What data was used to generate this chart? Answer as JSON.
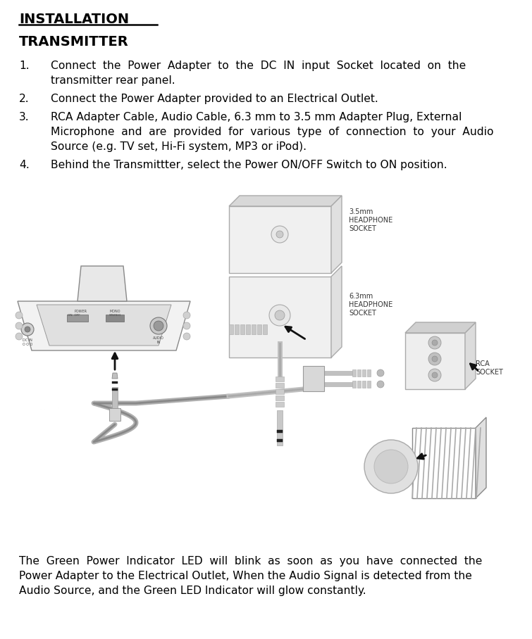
{
  "title": "INSTALLATION",
  "subtitle": "TRANSMITTER",
  "line1a": "Connect  the  Power  Adapter  to  the  DC  IN  input  Socket  located  on  the",
  "line1b": "transmitter rear panel.",
  "line2": "Connect the Power Adapter provided to an Electrical Outlet.",
  "line3a": "RCA Adapter Cable, Audio Cable, 6.3 mm to 3.5 mm Adapter Plug, External",
  "line3b": "Microphone  and  are  provided  for  various  type  of  connection  to  your  Audio",
  "line3c": "Source (e.g. TV set, Hi-Fi system, MP3 or iPod).",
  "line4": "Behind the Transmittter, select the Power ON/OFF Switch to ON position.",
  "footer1": "The  Green  Power  Indicator  LED  will  blink  as  soon  as  you  have  connected  the",
  "footer2": "Power Adapter to the Electrical Outlet, When the Audio Signal is detected from the",
  "footer3": "Audio Source, and the Green LED Indicator will glow constantly.",
  "bg_color": "#ffffff",
  "text_color": "#000000"
}
